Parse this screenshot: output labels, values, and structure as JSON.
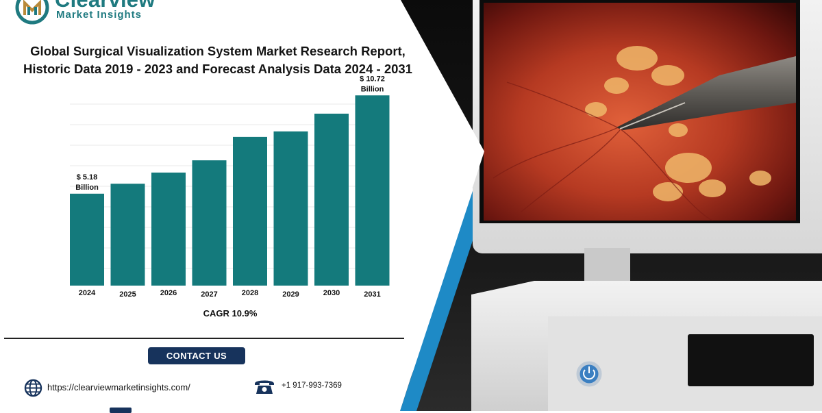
{
  "brand": {
    "name": "Clearview",
    "tagline": "Market Insights",
    "color": "#1f7a80"
  },
  "report": {
    "title_line1": "Global Surgical Visualization System Market Research Report,",
    "title_line2": "Historic Data 2019 - 2023 and Forecast Analysis Data 2024 - 2031"
  },
  "chart_data": {
    "type": "bar",
    "categories": [
      "2024",
      "2025",
      "2026",
      "2027",
      "2028",
      "2029",
      "2030",
      "2031"
    ],
    "values": [
      5.18,
      5.74,
      6.37,
      7.06,
      8.38,
      8.69,
      9.69,
      10.72
    ],
    "annotations": [
      {
        "index": 0,
        "line1": "$ 5.18",
        "line2": "Billion"
      },
      {
        "index": 7,
        "line1": "$ 10.72",
        "line2": "Billion"
      }
    ],
    "title": "",
    "xlabel": "",
    "ylabel": "",
    "ylim": [
      0,
      11
    ],
    "grid": true,
    "bar_color": "#147a7c"
  },
  "cagr": "CAGR 10.9%",
  "contact": {
    "button_label": "CONTACT US",
    "website": "https://clearviewmarketinsights.com/",
    "phone": "+1 917-993-7369",
    "button_color": "#17335c"
  },
  "icons": {
    "website": "globe-icon",
    "phone": "telephone-icon",
    "email": "envelope-icon"
  }
}
